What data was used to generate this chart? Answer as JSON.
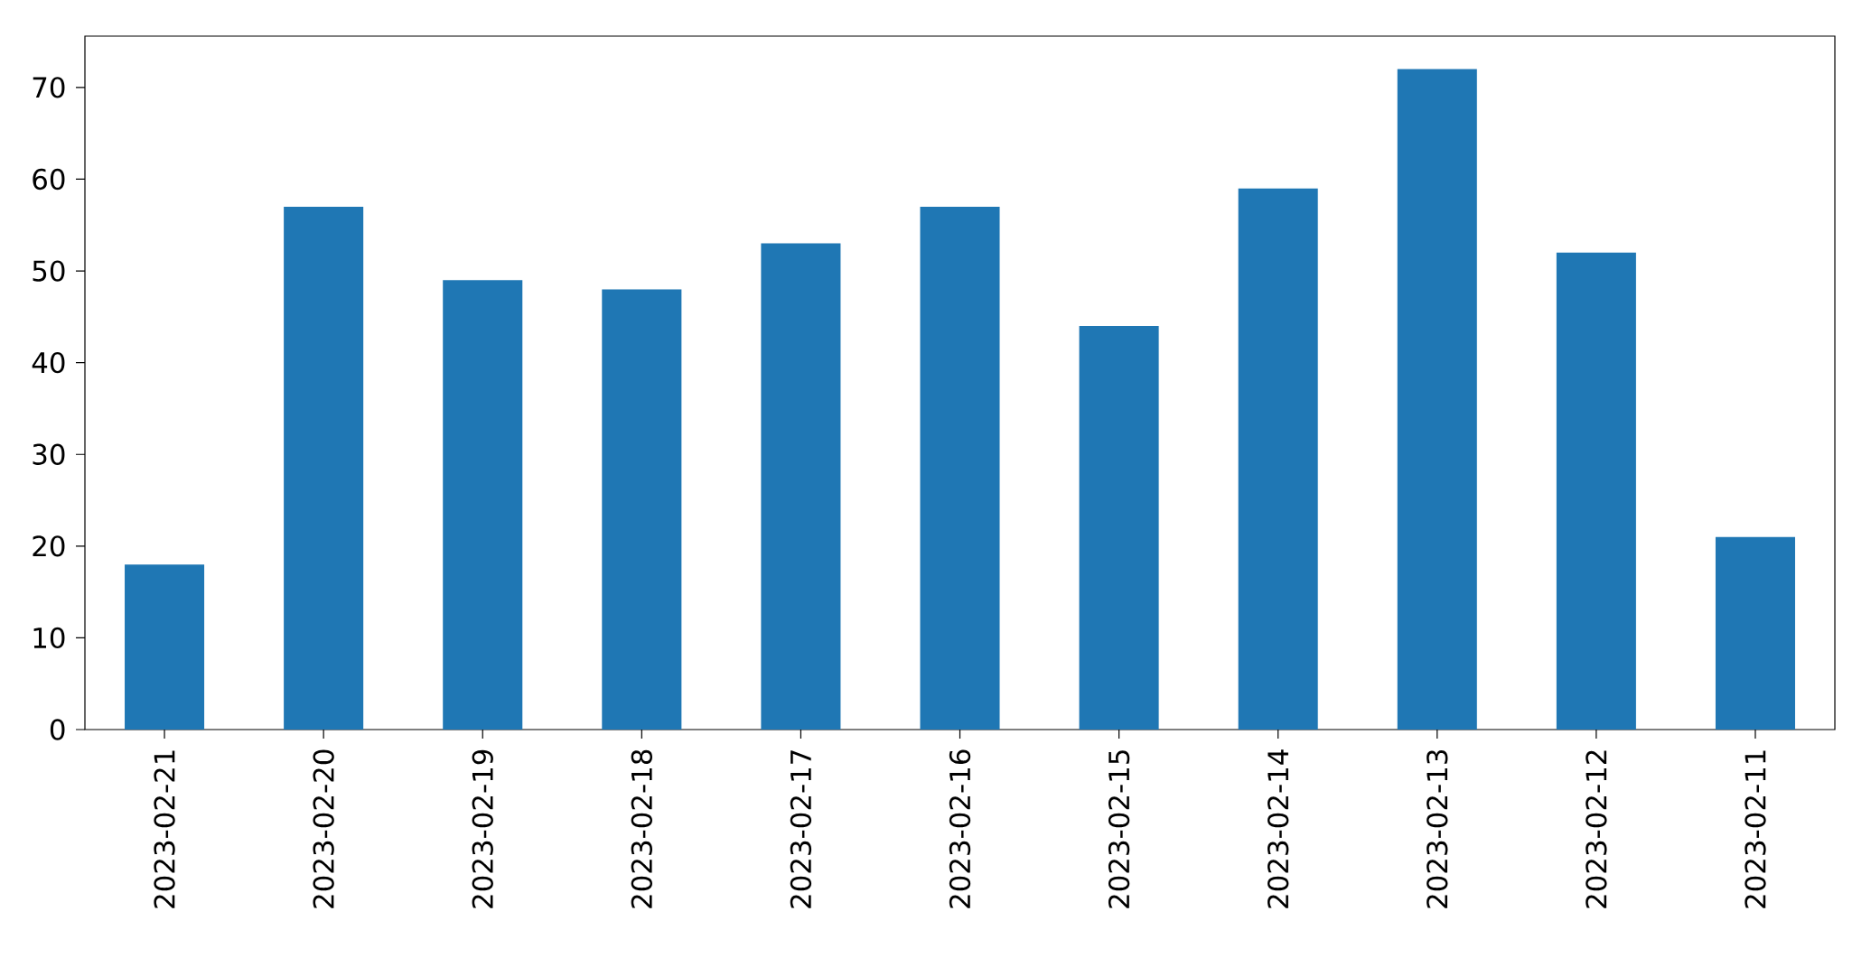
{
  "chart_data": {
    "type": "bar",
    "categories": [
      "2023-02-21",
      "2023-02-20",
      "2023-02-19",
      "2023-02-18",
      "2023-02-17",
      "2023-02-16",
      "2023-02-15",
      "2023-02-14",
      "2023-02-13",
      "2023-02-12",
      "2023-02-11"
    ],
    "values": [
      18,
      57,
      49,
      48,
      53,
      57,
      44,
      59,
      72,
      52,
      21
    ],
    "color": "#1f77b4",
    "ylim": [
      0,
      75.6
    ],
    "yticks": [
      0,
      10,
      20,
      30,
      40,
      50,
      60,
      70
    ]
  }
}
